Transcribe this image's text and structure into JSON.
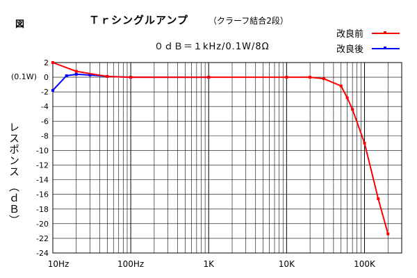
{
  "figure_label": "図",
  "title_main": "Ｔｒシングルアンプ",
  "title_sub": "（クラーフ結合2段）",
  "subtitle": "０ｄＢ＝１kHz/0.1W/8Ω",
  "ref_label": "(0.1W)",
  "chart_data": {
    "type": "line",
    "title": "Ｔｒシングルアンプ （クラーフ結合2段）",
    "subtitle": "０ｄＢ＝１kHz/0.1W/8Ω",
    "xlabel": "",
    "ylabel": "レスポンス （ｄＢ）",
    "x_scale": "log",
    "xlim": [
      10,
      300000
    ],
    "ylim": [
      -24,
      2
    ],
    "x_ticks": [
      {
        "value": 10,
        "label": "10Hz"
      },
      {
        "value": 100,
        "label": "100Hz"
      },
      {
        "value": 1000,
        "label": "1K"
      },
      {
        "value": 10000,
        "label": "10K"
      },
      {
        "value": 100000,
        "label": "100K"
      }
    ],
    "y_ticks": [
      2,
      0,
      -2,
      -4,
      -6,
      -8,
      -10,
      -12,
      -14,
      -16,
      -18,
      -20,
      -22,
      -24
    ],
    "grid": true,
    "legend_position": "top-right",
    "series": [
      {
        "name": "改良前",
        "color": "#ff0000",
        "x": [
          10,
          20,
          50,
          100,
          1000,
          10000,
          20000,
          30000,
          50000,
          60000,
          70000,
          100000,
          150000,
          200000
        ],
        "y": [
          2,
          0.8,
          0.1,
          0,
          0,
          0,
          0,
          -0.2,
          -1.2,
          -2.8,
          -4.4,
          -9.0,
          -16.6,
          -21.4
        ]
      },
      {
        "name": "改良後",
        "color": "#0000ff",
        "x": [
          10,
          15,
          20,
          30,
          50,
          100,
          1000
        ],
        "y": [
          -1.8,
          0.2,
          0.4,
          0.3,
          0.1,
          0,
          0
        ]
      }
    ]
  }
}
